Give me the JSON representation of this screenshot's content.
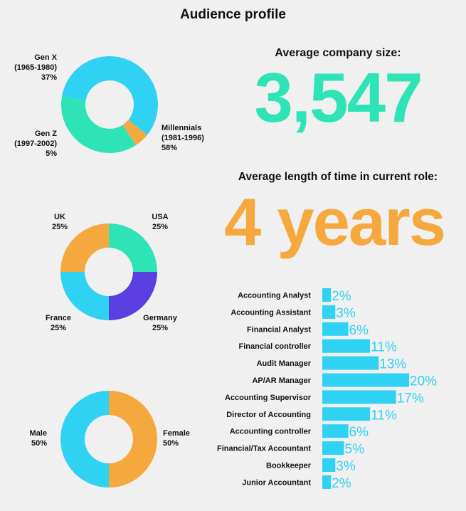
{
  "header": {
    "title": "Audience profile"
  },
  "colors": {
    "green": "#2ee3b5",
    "cyan": "#2fd2f2",
    "orange": "#f5a83e",
    "purple": "#5a3ee0",
    "ink": "#111111"
  },
  "stats": {
    "company_size_label": "Average company size:",
    "company_size_value": "3,547",
    "tenure_label": "Average length of time in current role:",
    "tenure_value": "4 years"
  },
  "chart_data": [
    {
      "type": "pie",
      "variant": "donut",
      "title": "",
      "series": [
        {
          "name": "Gen X",
          "sub": "(1965-1980)",
          "pct_label": "37%",
          "value": 37,
          "color": "#2ee3b5"
        },
        {
          "name": "Millennials",
          "sub": "(1981-1996)",
          "pct_label": "58%",
          "value": 58,
          "color": "#2fd2f2"
        },
        {
          "name": "Gen Z",
          "sub": "(1997-2002)",
          "pct_label": "5%",
          "value": 5,
          "color": "#f5a83e"
        }
      ]
    },
    {
      "type": "pie",
      "variant": "donut",
      "title": "",
      "series": [
        {
          "name": "USA",
          "pct_label": "25%",
          "value": 25,
          "color": "#2ee3b5"
        },
        {
          "name": "Germany",
          "pct_label": "25%",
          "value": 25,
          "color": "#5a3ee0"
        },
        {
          "name": "France",
          "pct_label": "25%",
          "value": 25,
          "color": "#2fd2f2"
        },
        {
          "name": "UK",
          "pct_label": "25%",
          "value": 25,
          "color": "#f5a83e"
        }
      ]
    },
    {
      "type": "pie",
      "variant": "donut",
      "title": "",
      "series": [
        {
          "name": "Female",
          "pct_label": "50%",
          "value": 50,
          "color": "#f5a83e"
        },
        {
          "name": "Male",
          "pct_label": "50%",
          "value": 50,
          "color": "#2fd2f2"
        }
      ]
    },
    {
      "type": "bar",
      "orientation": "horizontal",
      "title": "",
      "xlim": [
        0,
        20
      ],
      "color": "#2fd2f2",
      "categories": [
        "Accounting Analyst",
        "Accounting Assistant",
        "Financial Analyst",
        "Financial controller",
        "Audit Manager",
        "AP/AR Manager",
        "Accounting Supervisor",
        "Director of Accounting",
        "Accounting controller",
        "Financial/Tax Accountant",
        "Bookkeeper",
        "Junior Accountant"
      ],
      "values": [
        2,
        3,
        6,
        11,
        13,
        20,
        17,
        11,
        6,
        5,
        3,
        2
      ],
      "value_labels": [
        "2%",
        "3%",
        "6%",
        "11%",
        "13%",
        "20%",
        "17%",
        "11%",
        "6%",
        "5%",
        "3%",
        "2%"
      ]
    }
  ]
}
